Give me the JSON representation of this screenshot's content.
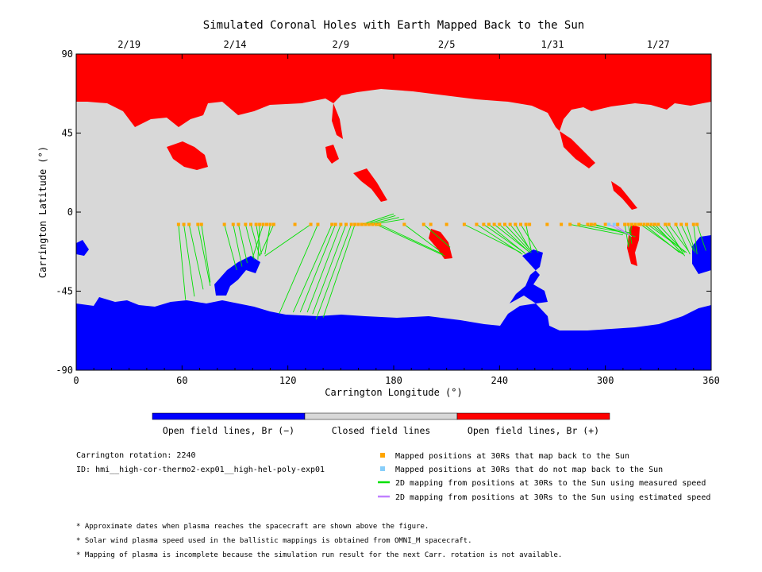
{
  "chart_data": {
    "type": "scatter",
    "title": "Simulated Coronal Holes with Earth Mapped Back to the Sun",
    "xlabel": "Carrington Longitude (°)",
    "ylabel": "Carrington Latitude (°)",
    "xlim": [
      0,
      360
    ],
    "ylim": [
      -90,
      90
    ],
    "x_ticks": [
      0,
      60,
      120,
      180,
      240,
      300,
      360
    ],
    "y_ticks": [
      90,
      45,
      0,
      -45,
      -90
    ],
    "x_tick_labels": [
      "0",
      "60",
      "120",
      "180",
      "240",
      "300",
      "360"
    ],
    "y_tick_labels": [
      "90",
      "45",
      "0",
      "-45",
      "-90"
    ],
    "top_axis": {
      "labels": [
        "2/19",
        "2/14",
        "2/9",
        "2/5",
        "1/31",
        "1/27"
      ],
      "positions": [
        30,
        90,
        150,
        210,
        270,
        330
      ]
    },
    "colors": {
      "negative_open": "#0000ff",
      "closed": "#d8d8d8",
      "positive_open": "#ff0000",
      "mapped_point": "#ffa500",
      "unmapped_point": "#87cefa",
      "measured_line": "#00e000",
      "estimated_line": "#c080ff"
    },
    "mapped_positions_lat": -7,
    "mapped_longitudes": [
      58,
      61,
      64,
      69,
      71,
      84,
      89,
      92,
      96,
      99,
      102,
      104,
      106,
      108,
      110,
      112,
      124,
      133,
      137,
      145,
      147,
      150,
      153,
      156,
      158,
      160,
      162,
      164,
      166,
      168,
      170,
      172,
      186,
      197,
      201,
      210,
      220,
      227,
      231,
      234,
      237,
      240,
      243,
      246,
      249,
      252,
      255,
      257,
      267,
      275,
      280,
      285,
      290,
      292,
      294,
      300,
      307,
      311,
      313,
      315,
      317,
      319,
      320,
      322,
      324,
      326,
      328,
      330,
      334,
      336,
      340,
      343,
      346,
      350,
      352
    ],
    "unmapped_longitudes": [
      302,
      305
    ],
    "measured_speed_lines": [
      {
        "from": [
          58,
          -7
        ],
        "to": [
          62,
          -50
        ]
      },
      {
        "from": [
          61,
          -7
        ],
        "to": [
          67,
          -48
        ]
      },
      {
        "from": [
          64,
          -7
        ],
        "to": [
          72,
          -44
        ]
      },
      {
        "from": [
          69,
          -7
        ],
        "to": [
          76,
          -42
        ]
      },
      {
        "from": [
          71,
          -7
        ],
        "to": [
          76,
          -40
        ]
      },
      {
        "from": [
          84,
          -7
        ],
        "to": [
          91,
          -33
        ]
      },
      {
        "from": [
          89,
          -7
        ],
        "to": [
          94,
          -31
        ]
      },
      {
        "from": [
          92,
          -7
        ],
        "to": [
          97,
          -29
        ]
      },
      {
        "from": [
          96,
          -7
        ],
        "to": [
          101,
          -27
        ]
      },
      {
        "from": [
          99,
          -7
        ],
        "to": [
          104,
          -25
        ]
      },
      {
        "from": [
          102,
          -7
        ],
        "to": [
          105,
          -24
        ]
      },
      {
        "from": [
          104,
          -7
        ],
        "to": [
          103,
          -27
        ]
      },
      {
        "from": [
          106,
          -7
        ],
        "to": [
          100,
          -26
        ]
      },
      {
        "from": [
          110,
          -7
        ],
        "to": [
          107,
          -24
        ]
      },
      {
        "from": [
          112,
          -7
        ],
        "to": [
          104,
          -25
        ]
      },
      {
        "from": [
          133,
          -7
        ],
        "to": [
          107,
          -25
        ]
      },
      {
        "from": [
          137,
          -7
        ],
        "to": [
          115,
          -58
        ]
      },
      {
        "from": [
          145,
          -7
        ],
        "to": [
          123,
          -57
        ]
      },
      {
        "from": [
          147,
          -7
        ],
        "to": [
          127,
          -57
        ]
      },
      {
        "from": [
          150,
          -7
        ],
        "to": [
          131,
          -57
        ]
      },
      {
        "from": [
          153,
          -7
        ],
        "to": [
          134,
          -58
        ]
      },
      {
        "from": [
          156,
          -7
        ],
        "to": [
          136,
          -61
        ]
      },
      {
        "from": [
          158,
          -7
        ],
        "to": [
          140,
          -60
        ]
      },
      {
        "from": [
          162,
          -7
        ],
        "to": [
          180,
          -1
        ]
      },
      {
        "from": [
          164,
          -7
        ],
        "to": [
          181,
          -2
        ]
      },
      {
        "from": [
          166,
          -7
        ],
        "to": [
          183,
          -3
        ]
      },
      {
        "from": [
          168,
          -7
        ],
        "to": [
          186,
          -4
        ]
      },
      {
        "from": [
          170,
          -7
        ],
        "to": [
          209,
          -25
        ]
      },
      {
        "from": [
          172,
          -7
        ],
        "to": [
          208,
          -24
        ]
      },
      {
        "from": [
          186,
          -7
        ],
        "to": [
          206,
          -22
        ]
      },
      {
        "from": [
          197,
          -7
        ],
        "to": [
          212,
          -20
        ]
      },
      {
        "from": [
          220,
          -7
        ],
        "to": [
          252,
          -23
        ]
      },
      {
        "from": [
          227,
          -7
        ],
        "to": [
          253,
          -24
        ]
      },
      {
        "from": [
          231,
          -7
        ],
        "to": [
          254,
          -23
        ]
      },
      {
        "from": [
          234,
          -7
        ],
        "to": [
          255,
          -24
        ]
      },
      {
        "from": [
          237,
          -7
        ],
        "to": [
          256,
          -22
        ]
      },
      {
        "from": [
          240,
          -7
        ],
        "to": [
          257,
          -23
        ]
      },
      {
        "from": [
          243,
          -7
        ],
        "to": [
          258,
          -23
        ]
      },
      {
        "from": [
          246,
          -7
        ],
        "to": [
          258,
          -22
        ]
      },
      {
        "from": [
          249,
          -7
        ],
        "to": [
          257,
          -21
        ]
      },
      {
        "from": [
          252,
          -7
        ],
        "to": [
          262,
          -23
        ]
      },
      {
        "from": [
          255,
          -7
        ],
        "to": [
          258,
          -22
        ]
      },
      {
        "from": [
          280,
          -7
        ],
        "to": [
          310,
          -13
        ]
      },
      {
        "from": [
          285,
          -7
        ],
        "to": [
          313,
          -12
        ]
      },
      {
        "from": [
          292,
          -7
        ],
        "to": [
          315,
          -12
        ]
      },
      {
        "from": [
          294,
          -7
        ],
        "to": [
          317,
          -14
        ]
      },
      {
        "from": [
          311,
          -7
        ],
        "to": [
          313,
          -19
        ]
      },
      {
        "from": [
          313,
          -7
        ],
        "to": [
          315,
          -18
        ]
      },
      {
        "from": [
          315,
          -7
        ],
        "to": [
          313,
          -20
        ]
      },
      {
        "from": [
          320,
          -7
        ],
        "to": [
          344,
          -24
        ]
      },
      {
        "from": [
          322,
          -7
        ],
        "to": [
          342,
          -23
        ]
      },
      {
        "from": [
          324,
          -7
        ],
        "to": [
          346,
          -23
        ]
      },
      {
        "from": [
          326,
          -7
        ],
        "to": [
          343,
          -21
        ]
      },
      {
        "from": [
          328,
          -7
        ],
        "to": [
          344,
          -24
        ]
      },
      {
        "from": [
          330,
          -7
        ],
        "to": [
          345,
          -23
        ]
      },
      {
        "from": [
          334,
          -7
        ],
        "to": [
          345,
          -25
        ]
      },
      {
        "from": [
          336,
          -7
        ],
        "to": [
          347,
          -22
        ]
      },
      {
        "from": [
          340,
          -7
        ],
        "to": [
          348,
          -24
        ]
      },
      {
        "from": [
          343,
          -7
        ],
        "to": [
          350,
          -22
        ]
      },
      {
        "from": [
          346,
          -7
        ],
        "to": [
          351,
          -23
        ]
      },
      {
        "from": [
          350,
          -7
        ],
        "to": [
          352,
          -24
        ]
      },
      {
        "from": [
          352,
          -7
        ],
        "to": [
          357,
          -22
        ]
      }
    ],
    "estimated_speed_lines": [
      {
        "from": [
          302,
          -7
        ],
        "to": [
          314,
          -13
        ]
      },
      {
        "from": [
          305,
          -7
        ],
        "to": [
          315,
          -14
        ]
      }
    ]
  },
  "colorbar": {
    "labels": [
      "Open field lines, Br (−)",
      "Closed field lines",
      "Open field lines, Br (+)"
    ]
  },
  "info": {
    "rotation": "Carrington rotation: 2240",
    "id": "ID: hmi__high-cor-thermo2-exp01__high-hel-poly-exp01"
  },
  "legend": {
    "mapped": "Mapped positions at 30Rs that map back to the Sun",
    "unmapped": "Mapped positions at 30Rs that do not map back to the Sun",
    "measured": "2D mapping from positions at 30Rs to the Sun using measured speed",
    "estimated": "2D mapping from positions at 30Rs to the Sun using estimated speed"
  },
  "notes": [
    "* Approximate dates when plasma reaches the spacecraft are shown above the figure.",
    "* Solar wind plasma speed used in the ballistic mappings is obtained from OMNI_M spacecraft.",
    "* Mapping of plasma is incomplete because the simulation run result for the next Carr. rotation is not available."
  ]
}
